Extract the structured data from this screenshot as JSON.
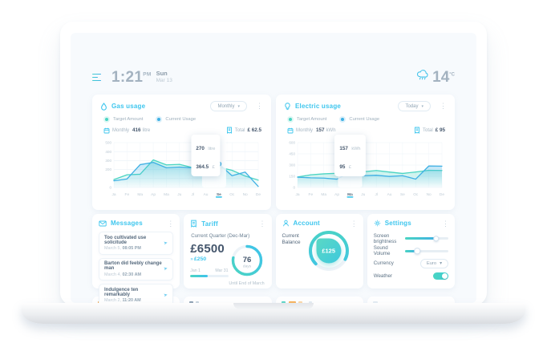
{
  "colors": {
    "accent": "#3ec6ee",
    "teal": "#4ad4c2",
    "blue": "#3fb0e4",
    "ink": "#44566c"
  },
  "header": {
    "time": "1:21",
    "meridiem": "PM",
    "day": "Sun",
    "date": "Mar 13",
    "temperature": "14",
    "temp_unit": "°C"
  },
  "cards": {
    "gas": {
      "title": "Gas usage",
      "period": "Monthly",
      "legend": [
        {
          "label": "Target Amount",
          "color": "#4ad4c2"
        },
        {
          "label": "Current Usage",
          "color": "#3fb0e4"
        }
      ],
      "stat_label": "Monthly",
      "stat_value": "416",
      "stat_unit": "litre",
      "total_label": "Total",
      "total_value": "£ 62.5"
    },
    "electric": {
      "title": "Electric usage",
      "period": "Today",
      "legend": [
        {
          "label": "Target Amount",
          "color": "#4ad4c2"
        },
        {
          "label": "Current Usage",
          "color": "#3fb0e4"
        }
      ],
      "stat_label": "Monthly",
      "stat_value": "157",
      "stat_unit": "kWh",
      "total_label": "Total",
      "total_value": "£ 95"
    },
    "messages": {
      "title": "Messages",
      "items": [
        {
          "title": "Too cultivated use solicitude",
          "date": "March 5,",
          "time": "08:05 PM"
        },
        {
          "title": "Barton did feebly change man",
          "date": "March 4,",
          "time": "02:30 AM"
        },
        {
          "title": "Indulgence ten remarkably",
          "date": "March 2,",
          "time": "11:20 AM"
        }
      ]
    },
    "tariff": {
      "title": "Tariff",
      "subtitle": "Current Quarter (Dec-Mar)",
      "amount": "£6500",
      "delta_prefix": "»",
      "delta": "£250",
      "range_start": "Jan 1",
      "range_end": "Mar 31",
      "progress": 0.45,
      "days": "76",
      "days_unit": "days",
      "note": "Until End of March",
      "ring": 0.78
    },
    "account": {
      "title": "Account",
      "balance_label_line1": "Current",
      "balance_label_line2": "Balance",
      "balance": "£125",
      "gauge": 0.7
    },
    "settings": {
      "title": "Settings",
      "rows": [
        {
          "type": "slider",
          "label": "Screen brightness",
          "value": 0.72
        },
        {
          "type": "slider",
          "label": "Sound Volume",
          "value": 0.28
        },
        {
          "type": "select",
          "label": "Currency",
          "value": "Euro"
        },
        {
          "type": "toggle",
          "label": "Weather",
          "value": true
        }
      ]
    }
  },
  "chart_data": [
    {
      "type": "line",
      "title": "Gas usage (monthly)",
      "x": [
        "Ja",
        "Fe",
        "Ma",
        "Ap",
        "Ma",
        "Ju",
        "Jl",
        "Au",
        "Se",
        "Oc",
        "No",
        "De"
      ],
      "ylim": [
        0,
        500
      ],
      "yticks": [
        500,
        400,
        300,
        200,
        0
      ],
      "gridlines": [
        0,
        100,
        200,
        300,
        400,
        500
      ],
      "legend_position": "top",
      "grid": true,
      "series": [
        {
          "name": "Target Amount",
          "color": "#4ad4c2",
          "values": [
            88,
            142,
            148,
            308,
            252,
            258,
            222,
            228,
            226,
            192,
            128,
            82
          ]
        },
        {
          "name": "Current Usage",
          "color": "#3fb0e4",
          "values": [
            75,
            95,
            255,
            280,
            220,
            228,
            218,
            292,
            262,
            132,
            172,
            12
          ]
        }
      ],
      "selected": {
        "index": 8,
        "label": "Se"
      },
      "marker": {
        "series": 1,
        "value": 262
      },
      "tooltip": {
        "v1": "270",
        "u1": "litre",
        "v2": "364.5",
        "u2": "£"
      },
      "tooltip_align": "right"
    },
    {
      "type": "line",
      "title": "Electric usage (monthly)",
      "x": [
        "Ja",
        "Fe",
        "Ma",
        "Ap",
        "Ma",
        "Ju",
        "Jl",
        "Au",
        "Se",
        "Oc",
        "No",
        "De"
      ],
      "ylim": [
        0,
        600
      ],
      "yticks": [
        600,
        450,
        300,
        150,
        0
      ],
      "gridlines": [
        0,
        150,
        300,
        450,
        600
      ],
      "legend_position": "top",
      "grid": true,
      "series": [
        {
          "name": "Target Amount",
          "color": "#4ad4c2",
          "values": [
            140,
            170,
            183,
            190,
            200,
            210,
            228,
            207,
            188,
            208,
            230,
            228
          ]
        },
        {
          "name": "Current Usage",
          "color": "#3fb0e4",
          "values": [
            138,
            130,
            126,
            112,
            205,
            158,
            164,
            148,
            158,
            112,
            288,
            285
          ]
        }
      ],
      "selected": {
        "index": 4,
        "label": "Ma"
      },
      "marker": {
        "series": 0,
        "value": 200
      },
      "tooltip": {
        "v1": "157",
        "u1": "kWh",
        "v2": "95",
        "u2": "£"
      },
      "tooltip_align": "center"
    }
  ]
}
